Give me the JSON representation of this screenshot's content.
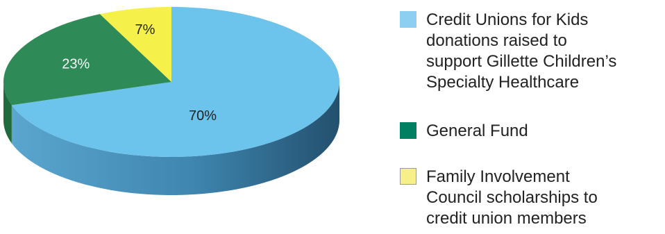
{
  "chart_data": {
    "type": "pie",
    "style": "3d",
    "slices": [
      {
        "label": "Credit Unions for Kids donations raised to support Gillette Children’s Specialty Healthcare",
        "value": 70,
        "value_label": "70%",
        "color": "#6cc3ec",
        "side_color": "#4a90b8"
      },
      {
        "label": "General Fund",
        "value": 23,
        "value_label": "23%",
        "color": "#2e8b57",
        "side_color": "#1f6b3e"
      },
      {
        "label": "Family Involvement Council scholarships to credit union members",
        "value": 7,
        "value_label": "7%",
        "color": "#f5f04a",
        "side_color": "#c7c030"
      }
    ],
    "legend_position": "right"
  },
  "legend": {
    "items": [
      {
        "text": "Credit Unions for Kids\ndonations raised to\nsupport Gillette Children’s\nSpecialty Healthcare",
        "color": "#8ccff0",
        "border": "#8ccff0"
      },
      {
        "text": "General Fund",
        "color": "#008060",
        "border": "#008060"
      },
      {
        "text": "Family Involvement\nCouncil scholarships to\ncredit union members",
        "color": "#f7f08a",
        "border": "#9a9a9a"
      }
    ]
  }
}
